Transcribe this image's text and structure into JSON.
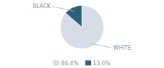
{
  "chart_data": {
    "type": "pie",
    "categories": [
      "WHITE",
      "BLACK"
    ],
    "values": [
      86.4,
      13.6
    ],
    "value_labels": [
      "86.4%",
      "13.6%"
    ],
    "colors": [
      "#d6dde8",
      "#2e5f7a"
    ],
    "legend": "bottom"
  }
}
